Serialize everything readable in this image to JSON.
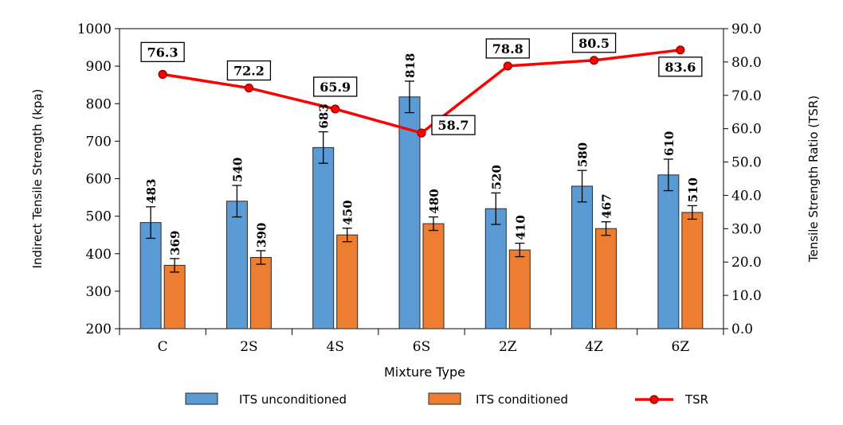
{
  "chart_data": {
    "type": "bar",
    "categories": [
      "C",
      "2S",
      "4S",
      "6S",
      "2Z",
      "4Z",
      "6Z"
    ],
    "xlabel": "Mixture Type",
    "ylabel": "Indirect Tensile Strength (kpa)",
    "y2label": "Tensile Strength Ratio (TSR)",
    "ylim": [
      200,
      1000
    ],
    "y2lim": [
      0,
      90
    ],
    "yticks": [
      "200",
      "300",
      "400",
      "500",
      "600",
      "700",
      "800",
      "900",
      "1000"
    ],
    "y2ticks": [
      "0.0",
      "10.0",
      "20.0",
      "30.0",
      "40.0",
      "50.0",
      "60.0",
      "70.0",
      "80.0",
      "90.0"
    ],
    "series": [
      {
        "name": "ITS unconditioned",
        "type": "bar",
        "color": "#5B9BD5",
        "values": [
          483,
          540,
          683,
          818,
          520,
          580,
          610
        ],
        "labels": [
          "483",
          "540",
          "683",
          "818",
          "520",
          "580",
          "610"
        ],
        "error": [
          42,
          42,
          42,
          42,
          42,
          42,
          42
        ]
      },
      {
        "name": "ITS conditioned",
        "type": "bar",
        "color": "#ED7D31",
        "values": [
          369,
          390,
          450,
          480,
          410,
          467,
          510
        ],
        "labels": [
          "369",
          "390",
          "450",
          "480",
          "410",
          "467",
          "510"
        ],
        "error": [
          18,
          18,
          18,
          18,
          18,
          18,
          18
        ]
      },
      {
        "name": "TSR",
        "type": "line",
        "axis": "right",
        "color": "#FF0000",
        "values": [
          76.3,
          72.2,
          65.9,
          58.7,
          78.8,
          80.5,
          83.6
        ],
        "labels": [
          "76.3",
          "72.2",
          "65.9",
          "58.7",
          "78.8",
          "80.5",
          "83.6"
        ]
      }
    ],
    "legend": {
      "position": "bottom",
      "items": [
        "ITS unconditioned",
        "ITS conditioned",
        "TSR"
      ]
    },
    "grid": false
  }
}
